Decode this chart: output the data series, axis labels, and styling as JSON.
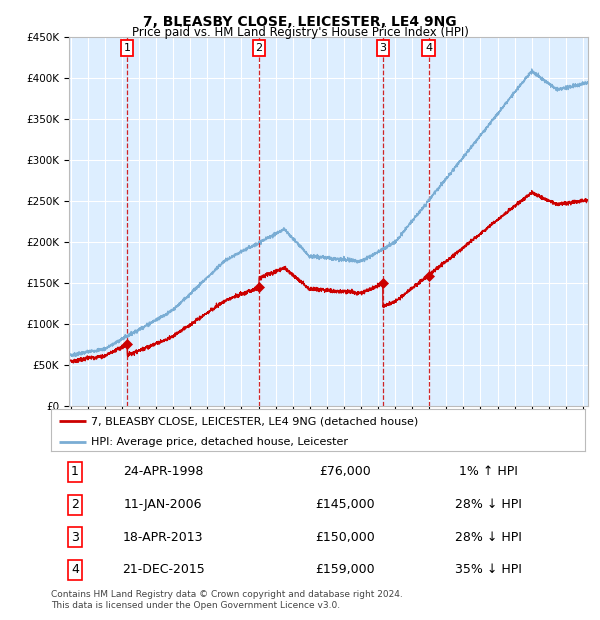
{
  "title": "7, BLEASBY CLOSE, LEICESTER, LE4 9NG",
  "subtitle": "Price paid vs. HM Land Registry's House Price Index (HPI)",
  "background_color": "#ffffff",
  "plot_bg_color": "#ddeeff",
  "grid_color": "#ffffff",
  "hpi_line_color": "#7aadd4",
  "price_line_color": "#cc0000",
  "marker_color": "#cc0000",
  "vline_color": "#cc0000",
  "ylim": [
    0,
    450000
  ],
  "yticks": [
    0,
    50000,
    100000,
    150000,
    200000,
    250000,
    300000,
    350000,
    400000,
    450000
  ],
  "ytick_labels": [
    "£0",
    "£50K",
    "£100K",
    "£150K",
    "£200K",
    "£250K",
    "£300K",
    "£350K",
    "£400K",
    "£450K"
  ],
  "xmin_year": 1995,
  "xmax_year": 2025,
  "xticks": [
    1995,
    1996,
    1997,
    1998,
    1999,
    2000,
    2001,
    2002,
    2003,
    2004,
    2005,
    2006,
    2007,
    2008,
    2009,
    2010,
    2011,
    2012,
    2013,
    2014,
    2015,
    2016,
    2017,
    2018,
    2019,
    2020,
    2021,
    2022,
    2023,
    2024,
    2025
  ],
  "transactions": [
    {
      "num": 1,
      "date": "24-APR-1998",
      "year": 1998.31,
      "price": 76000,
      "hpi_pct": "1% ↑ HPI"
    },
    {
      "num": 2,
      "date": "11-JAN-2006",
      "year": 2006.03,
      "price": 145000,
      "hpi_pct": "28% ↓ HPI"
    },
    {
      "num": 3,
      "date": "18-APR-2013",
      "year": 2013.29,
      "price": 150000,
      "hpi_pct": "28% ↓ HPI"
    },
    {
      "num": 4,
      "date": "21-DEC-2015",
      "year": 2015.97,
      "price": 159000,
      "hpi_pct": "35% ↓ HPI"
    }
  ],
  "legend_entries": [
    "7, BLEASBY CLOSE, LEICESTER, LE4 9NG (detached house)",
    "HPI: Average price, detached house, Leicester"
  ],
  "footer_text": "Contains HM Land Registry data © Crown copyright and database right 2024.\nThis data is licensed under the Open Government Licence v3.0.",
  "title_fontsize": 10,
  "subtitle_fontsize": 8.5,
  "tick_fontsize": 7.5,
  "legend_fontsize": 8,
  "table_fontsize": 9,
  "footer_fontsize": 6.5
}
